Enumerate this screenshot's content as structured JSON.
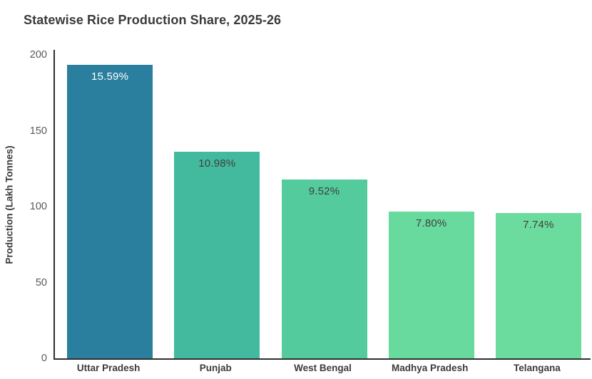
{
  "title": "Statewise Rice Production Share, 2025-26",
  "chart_data": {
    "type": "bar",
    "title": "Statewise Rice Production Share, 2025-26",
    "xlabel": "",
    "ylabel": "Production (Lakh Tonnes)",
    "categories": [
      "Uttar Pradesh",
      "Punjab",
      "West Bengal",
      "Madhya Pradesh",
      "Telangana"
    ],
    "values": [
      193.3,
      136.2,
      118.0,
      96.7,
      96.0
    ],
    "bar_labels": [
      "15.59%",
      "10.98%",
      "9.52%",
      "7.80%",
      "7.74%"
    ],
    "bar_colors": [
      "#2a7f9e",
      "#43b99e",
      "#53cb9c",
      "#68da9d",
      "#6cdc9e"
    ],
    "bar_label_colors": [
      "#ffffff",
      "#3f3f3f",
      "#3f3f3f",
      "#3f3f3f",
      "#3f3f3f"
    ],
    "ylim": [
      0,
      200
    ],
    "yticks": [
      0,
      50,
      100,
      150,
      200
    ],
    "grid": false,
    "legend": "none",
    "axis_color": "#2f2f2f",
    "tick_label_color": "#55585a"
  }
}
